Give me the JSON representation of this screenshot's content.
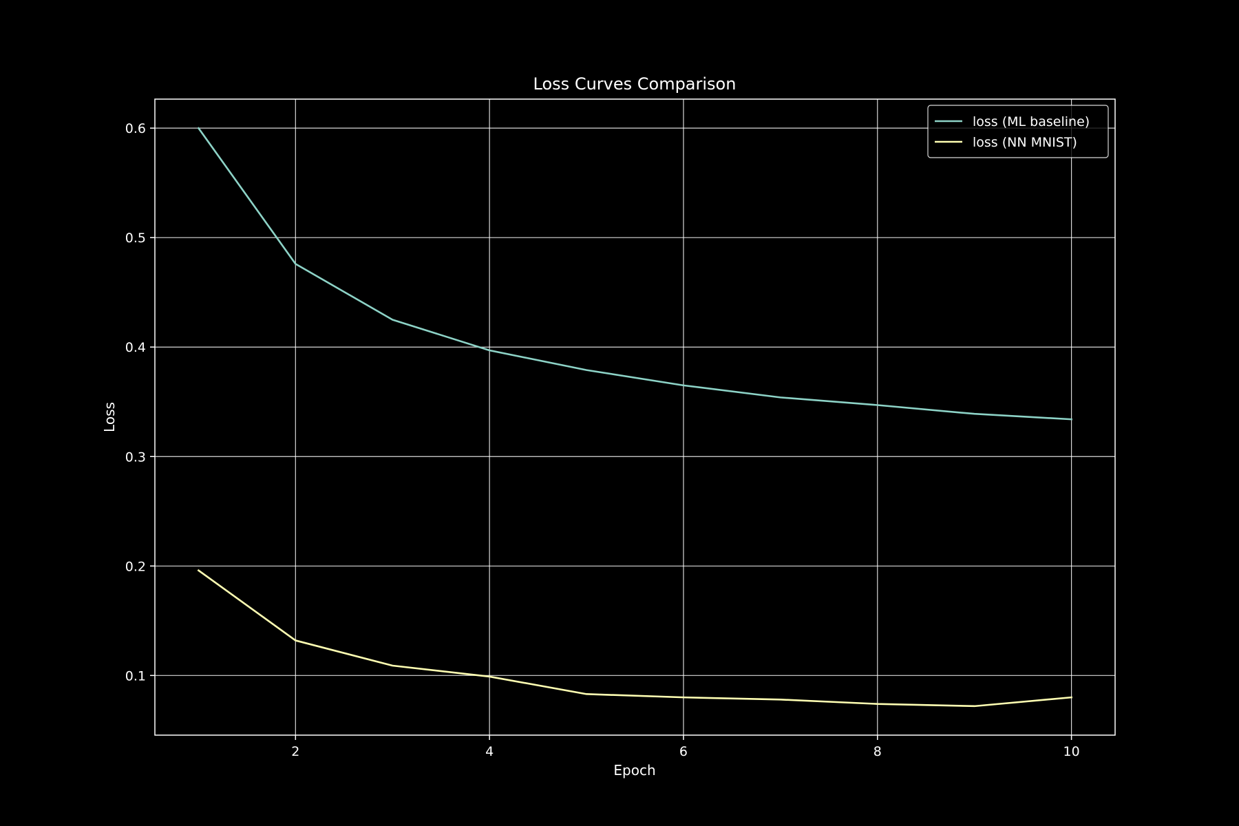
{
  "chart_data": {
    "type": "line",
    "title": "Loss Curves Comparison",
    "xlabel": "Epoch",
    "ylabel": "Loss",
    "x": [
      1,
      2,
      3,
      4,
      5,
      6,
      7,
      8,
      9,
      10
    ],
    "xlim": [
      0.55,
      10.45
    ],
    "ylim": [
      0.0455,
      0.6265
    ],
    "xticks": [
      2,
      4,
      6,
      8,
      10
    ],
    "yticks": [
      0.1,
      0.2,
      0.3,
      0.4,
      0.5,
      0.6
    ],
    "xtick_labels": [
      "2",
      "4",
      "6",
      "8",
      "10"
    ],
    "ytick_labels": [
      "0.1",
      "0.2",
      "0.3",
      "0.4",
      "0.5",
      "0.6"
    ],
    "grid": true,
    "legend_position": "top-right",
    "background": "#000000",
    "series": [
      {
        "name": "loss (ML baseline)",
        "color": "#8dd3c7",
        "values": [
          0.6,
          0.476,
          0.425,
          0.397,
          0.379,
          0.365,
          0.354,
          0.347,
          0.339,
          0.334
        ]
      },
      {
        "name": "loss (NN MNIST)",
        "color": "#ffffb3",
        "values": [
          0.196,
          0.132,
          0.109,
          0.099,
          0.083,
          0.08,
          0.078,
          0.074,
          0.072,
          0.08
        ]
      }
    ]
  }
}
